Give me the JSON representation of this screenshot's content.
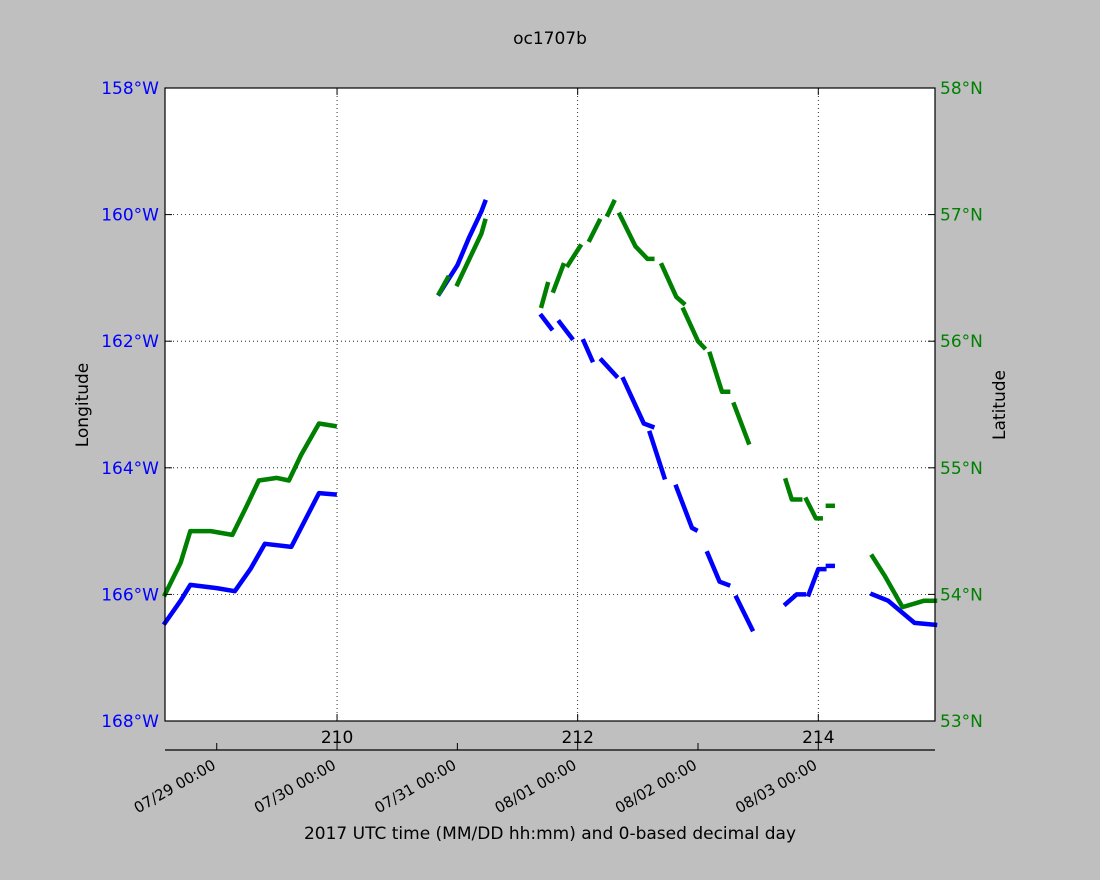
{
  "chart_data": {
    "type": "line",
    "title": "oc1707b",
    "xlabel": "2017 UTC time (MM/DD hh:mm) and 0-based decimal day",
    "ylabel": "Longitude",
    "ylabel_right": "Latitude",
    "xlim": [
      208.57,
      214.97
    ],
    "ylim": [
      -168,
      -158
    ],
    "ylim_right": [
      53,
      58
    ],
    "grid": true,
    "x_ticks": [
      210,
      212,
      214
    ],
    "x_tick_labels": [
      "210",
      "212",
      "214"
    ],
    "date_ticks": [
      209,
      210,
      211,
      212,
      213,
      214
    ],
    "date_tick_labels": [
      "07/29 00:00",
      "07/30 00:00",
      "07/31 00:00",
      "08/01 00:00",
      "08/02 00:00",
      "08/03 00:00"
    ],
    "y_ticks": [
      -168,
      -166,
      -164,
      -162,
      -160,
      -158
    ],
    "y_tick_labels": [
      "168°W",
      "166°W",
      "164°W",
      "162°W",
      "160°W",
      "158°W"
    ],
    "y_ticks_right": [
      53,
      54,
      55,
      56,
      57,
      58
    ],
    "y_tick_labels_right": [
      "53°N",
      "54°N",
      "55°N",
      "56°N",
      "57°N",
      "58°N"
    ],
    "series": [
      {
        "color": "#0000ff",
        "axis": "left",
        "segments": [
          [
            [
              208.57,
              -166.45
            ],
            [
              208.7,
              -166.1
            ],
            [
              208.78,
              -165.85
            ],
            [
              209.0,
              -165.9
            ],
            [
              209.15,
              -165.95
            ],
            [
              209.28,
              -165.6
            ],
            [
              209.4,
              -165.2
            ],
            [
              209.62,
              -165.25
            ],
            [
              209.85,
              -164.4
            ],
            [
              209.98,
              -164.42
            ]
          ],
          [
            [
              210.85,
              -161.25
            ],
            [
              211.0,
              -160.8
            ],
            [
              211.1,
              -160.35
            ],
            [
              211.2,
              -159.95
            ],
            [
              211.23,
              -159.8
            ]
          ],
          [
            [
              211.7,
              -161.6
            ],
            [
              211.78,
              -161.8
            ]
          ],
          [
            [
              211.85,
              -161.7
            ],
            [
              211.95,
              -161.95
            ]
          ],
          [
            [
              212.05,
              -162.0
            ],
            [
              212.12,
              -162.3
            ]
          ],
          [
            [
              212.2,
              -162.3
            ],
            [
              212.32,
              -162.55
            ]
          ],
          [
            [
              212.38,
              -162.6
            ],
            [
              212.55,
              -163.3
            ],
            [
              212.62,
              -163.35
            ]
          ],
          [
            [
              212.6,
              -163.45
            ],
            [
              212.72,
              -164.15
            ]
          ],
          [
            [
              212.82,
              -164.3
            ],
            [
              212.95,
              -164.95
            ],
            [
              212.98,
              -164.98
            ]
          ],
          [
            [
              213.08,
              -165.35
            ],
            [
              213.18,
              -165.8
            ],
            [
              213.25,
              -165.85
            ]
          ],
          [
            [
              213.32,
              -166.05
            ],
            [
              213.45,
              -166.55
            ]
          ],
          [
            [
              213.73,
              -166.15
            ],
            [
              213.82,
              -166.0
            ],
            [
              213.88,
              -166.0
            ]
          ],
          [
            [
              213.92,
              -166.0
            ],
            [
              214.0,
              -165.6
            ],
            [
              214.05,
              -165.6
            ]
          ],
          [
            [
              214.08,
              -165.55
            ],
            [
              214.12,
              -165.55
            ]
          ],
          [
            [
              214.45,
              -166.0
            ],
            [
              214.58,
              -166.1
            ],
            [
              214.8,
              -166.45
            ],
            [
              214.97,
              -166.48
            ]
          ]
        ]
      },
      {
        "color": "#008000",
        "axis": "right",
        "segments": [
          [
            [
              208.57,
              54.0
            ],
            [
              208.7,
              54.25
            ],
            [
              208.78,
              54.5
            ],
            [
              208.95,
              54.5
            ],
            [
              209.13,
              54.47
            ],
            [
              209.25,
              54.7
            ],
            [
              209.35,
              54.9
            ],
            [
              209.5,
              54.92
            ],
            [
              209.6,
              54.9
            ],
            [
              209.7,
              55.1
            ],
            [
              209.85,
              55.35
            ],
            [
              209.98,
              55.33
            ]
          ],
          [
            [
              210.85,
              56.38
            ],
            [
              210.92,
              56.5
            ]
          ],
          [
            [
              211.0,
              56.45
            ],
            [
              211.1,
              56.65
            ],
            [
              211.2,
              56.85
            ],
            [
              211.23,
              56.95
            ]
          ],
          [
            [
              211.7,
              56.28
            ],
            [
              211.75,
              56.45
            ]
          ],
          [
            [
              211.8,
              56.4
            ],
            [
              211.88,
              56.6
            ]
          ],
          [
            [
              211.92,
              56.6
            ],
            [
              212.02,
              56.75
            ]
          ],
          [
            [
              212.1,
              56.8
            ],
            [
              212.18,
              56.95
            ]
          ],
          [
            [
              212.25,
              57.0
            ],
            [
              212.3,
              57.1
            ]
          ],
          [
            [
              212.35,
              57.0
            ],
            [
              212.48,
              56.75
            ],
            [
              212.58,
              56.65
            ],
            [
              212.62,
              56.65
            ]
          ],
          [
            [
              212.7,
              56.6
            ],
            [
              212.82,
              56.35
            ],
            [
              212.88,
              56.3
            ]
          ],
          [
            [
              212.88,
              56.25
            ],
            [
              213.0,
              56.0
            ],
            [
              213.05,
              55.95
            ]
          ],
          [
            [
              213.1,
              55.9
            ],
            [
              213.2,
              55.6
            ],
            [
              213.25,
              55.6
            ]
          ],
          [
            [
              213.3,
              55.5
            ],
            [
              213.42,
              55.2
            ]
          ],
          [
            [
              213.73,
              54.9
            ],
            [
              213.78,
              54.75
            ],
            [
              213.85,
              54.75
            ]
          ],
          [
            [
              213.9,
              54.75
            ],
            [
              213.98,
              54.6
            ],
            [
              214.02,
              54.6
            ]
          ],
          [
            [
              214.08,
              54.7
            ],
            [
              214.12,
              54.7
            ]
          ],
          [
            [
              214.45,
              54.3
            ],
            [
              214.55,
              54.15
            ],
            [
              214.7,
              53.9
            ],
            [
              214.88,
              53.95
            ],
            [
              214.97,
              53.95
            ]
          ]
        ]
      }
    ]
  }
}
